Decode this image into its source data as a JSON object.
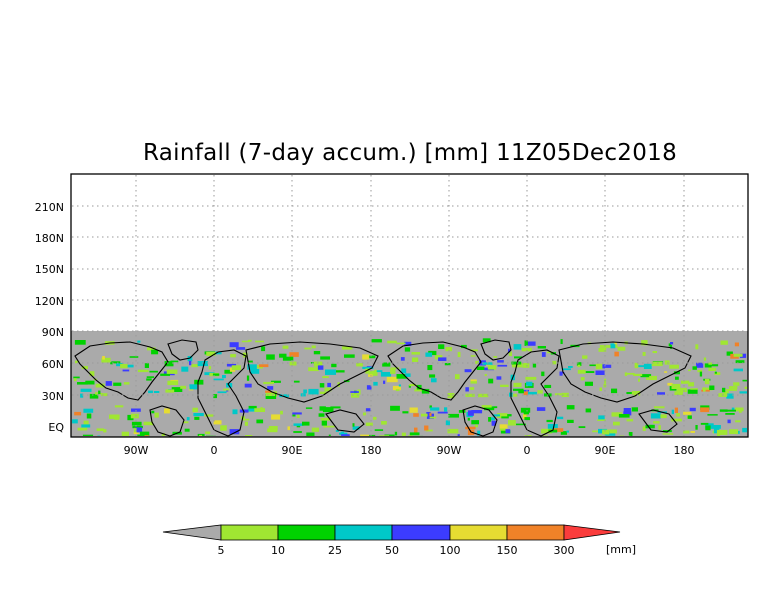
{
  "title": "Rainfall (7-day accum.) [mm] 11Z05Dec2018",
  "map": {
    "lat_labels": [
      "210N",
      "180N",
      "150N",
      "120N",
      "90N",
      "60N",
      "30N",
      "EQ"
    ],
    "lon_labels": [
      "90W",
      "0",
      "90E",
      "180",
      "90W",
      "0",
      "90E",
      "180"
    ],
    "grid": true,
    "data_lat_range": [
      "EQ",
      "90N"
    ]
  },
  "colorbar": {
    "labels": [
      "5",
      "10",
      "25",
      "50",
      "100",
      "150",
      "300"
    ],
    "unit": "[mm]",
    "colors": [
      "#aaaaaa",
      "#a0e632",
      "#00d200",
      "#00c8c8",
      "#3c3cff",
      "#e6dc32",
      "#f08228",
      "#fa3c3c"
    ]
  },
  "colors": {
    "no_rain": "#aaaaaa",
    "coast": "#000000",
    "grid": "#999999"
  }
}
